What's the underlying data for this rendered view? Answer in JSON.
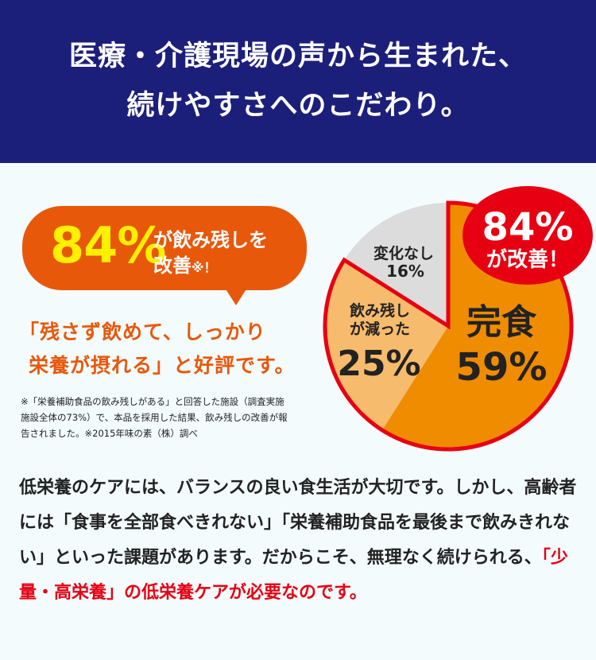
{
  "header": {
    "line1": "医療・介護現場の声から生まれた、",
    "line2": "続けやすさへのこだわり。"
  },
  "bubble": {
    "percent": "84%",
    "text1": "が飲み残しを",
    "text2": "改善",
    "mark": "※！"
  },
  "quote": {
    "line1": "「残さず飲めて、しっかり",
    "line2": "栄養が摂れる」と好評です。"
  },
  "footnote": [
    "※「栄養補助食品の飲み残しがある」と回答した施設（調査実施",
    "施設全体の73%）で、本品を採用した結果、飲み残しの改善が報",
    "告されました。※2015年味の素（株）調べ"
  ],
  "chart_data": {
    "type": "pie",
    "start": "12 o'clock, clockwise",
    "slices": [
      {
        "label": "完食",
        "value": 59,
        "value_label": "59%",
        "color": "#ef8c00"
      },
      {
        "label": "飲み残しが減った",
        "label_lines": [
          "飲み残し",
          "が減った"
        ],
        "value": 25,
        "value_label": "25%",
        "color": "#f6bb6c"
      },
      {
        "label": "変化なし",
        "value": 16,
        "value_label": "16%",
        "color": "#dcdcdc"
      }
    ],
    "highlight_outline_color": "#e60012",
    "badge": {
      "line1": "84%",
      "line2": "が改善！",
      "color": "#e60012"
    }
  },
  "body": {
    "normal": "低栄養のケアには、バランスの良い食生活が大切です。しかし、高齢者には「食事を全部食べきれない」「栄養補助食品を最後まで飲みきれない」といった課題があります。だからこそ、無理なく続けられる、",
    "highlight": "「少量・高栄養」の低栄養ケアが必要なのです。"
  }
}
